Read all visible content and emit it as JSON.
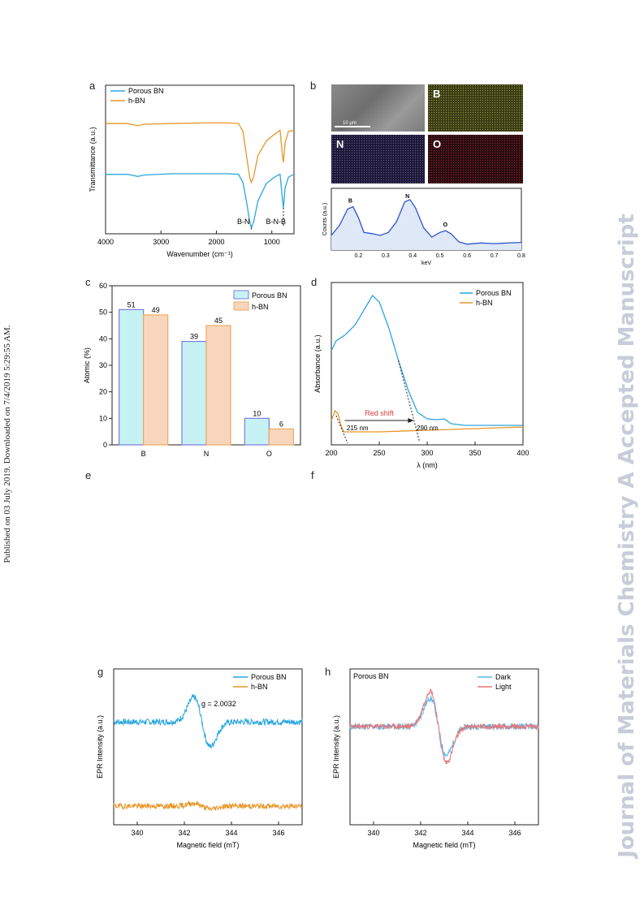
{
  "page": {
    "sidebar_text": "Published on 03 July 2019. Downloaded on 7/4/2019 5:29:55 AM.",
    "watermark_text": "Journal of Materials Chemistry A Accepted Manuscript",
    "panel_letters": [
      "a",
      "b",
      "c",
      "d",
      "e",
      "f",
      "g",
      "h"
    ]
  },
  "colors": {
    "porous": "#2aa6de",
    "hbn": "#e99527",
    "dark": "#5bb8ea",
    "light": "#e87575"
  },
  "chart_data": [
    {
      "id": "a",
      "type": "line",
      "title": "",
      "xlabel": "Wavenumber (cm⁻¹)",
      "ylabel": "Transmittance (a.u.)",
      "xlim": [
        4000,
        600
      ],
      "xticks": [
        "4000",
        "3000",
        "2000",
        "1000"
      ],
      "series": [
        {
          "name": "Porous BN",
          "points": [
            [
              4000,
              0.4
            ],
            [
              3600,
              0.4
            ],
            [
              3420,
              0.385
            ],
            [
              3300,
              0.395
            ],
            [
              2800,
              0.405
            ],
            [
              2200,
              0.405
            ],
            [
              1800,
              0.405
            ],
            [
              1600,
              0.4
            ],
            [
              1520,
              0.34
            ],
            [
              1450,
              0.18
            ],
            [
              1400,
              0.05
            ],
            [
              1370,
              0.0
            ],
            [
              1330,
              0.04
            ],
            [
              1250,
              0.2
            ],
            [
              1100,
              0.33
            ],
            [
              950,
              0.38
            ],
            [
              850,
              0.4
            ],
            [
              810,
              0.22
            ],
            [
              790,
              0.15
            ],
            [
              760,
              0.3
            ],
            [
              700,
              0.38
            ],
            [
              600,
              0.4
            ]
          ]
        },
        {
          "name": "h-BN",
          "points": [
            [
              4000,
              0.78
            ],
            [
              3600,
              0.78
            ],
            [
              3420,
              0.765
            ],
            [
              3300,
              0.775
            ],
            [
              2800,
              0.78
            ],
            [
              2200,
              0.785
            ],
            [
              1800,
              0.785
            ],
            [
              1600,
              0.78
            ],
            [
              1520,
              0.72
            ],
            [
              1450,
              0.52
            ],
            [
              1400,
              0.38
            ],
            [
              1370,
              0.34
            ],
            [
              1330,
              0.38
            ],
            [
              1250,
              0.54
            ],
            [
              1100,
              0.65
            ],
            [
              950,
              0.7
            ],
            [
              850,
              0.73
            ],
            [
              810,
              0.55
            ],
            [
              790,
              0.49
            ],
            [
              760,
              0.64
            ],
            [
              700,
              0.72
            ],
            [
              600,
              0.73
            ]
          ]
        }
      ],
      "annotations": [
        "B-N",
        "B-N-B"
      ]
    },
    {
      "id": "b",
      "type": "line",
      "title": "",
      "xlabel": "keV",
      "ylabel": "Counts (a.u.)",
      "xlim": [
        0.1,
        0.8
      ],
      "xticks": [
        "0.2",
        "0.3",
        "0.4",
        "0.5",
        "0.6",
        "0.7",
        "0.8"
      ],
      "map_labels": [
        "B",
        "N",
        "O"
      ],
      "scale_bar": "10 μm",
      "series": [
        {
          "name": "",
          "points": [
            [
              0.1,
              0.25
            ],
            [
              0.13,
              0.42
            ],
            [
              0.16,
              0.7
            ],
            [
              0.18,
              0.74
            ],
            [
              0.2,
              0.55
            ],
            [
              0.22,
              0.3
            ],
            [
              0.25,
              0.28
            ],
            [
              0.28,
              0.25
            ],
            [
              0.31,
              0.3
            ],
            [
              0.34,
              0.48
            ],
            [
              0.37,
              0.82
            ],
            [
              0.39,
              0.86
            ],
            [
              0.41,
              0.72
            ],
            [
              0.44,
              0.38
            ],
            [
              0.47,
              0.22
            ],
            [
              0.5,
              0.3
            ],
            [
              0.52,
              0.33
            ],
            [
              0.54,
              0.28
            ],
            [
              0.57,
              0.14
            ],
            [
              0.6,
              0.1
            ],
            [
              0.65,
              0.12
            ],
            [
              0.7,
              0.11
            ],
            [
              0.75,
              0.12
            ],
            [
              0.8,
              0.13
            ]
          ]
        }
      ],
      "peak_labels": [
        {
          "text": "B",
          "x": 0.17
        },
        {
          "text": "N",
          "x": 0.38
        },
        {
          "text": "O",
          "x": 0.52
        }
      ]
    },
    {
      "id": "c",
      "type": "bar",
      "title": "",
      "xlabel": "",
      "ylabel": "Atomic (%)",
      "ylim": [
        0,
        60
      ],
      "yticks": [
        "0",
        "10",
        "20",
        "30",
        "40",
        "50",
        "60"
      ],
      "categories": [
        "B",
        "N",
        "O"
      ],
      "series": [
        {
          "name": "Porous BN",
          "values": [
            51,
            39,
            10
          ]
        },
        {
          "name": "h-BN",
          "values": [
            49,
            45,
            6
          ]
        }
      ]
    },
    {
      "id": "d",
      "type": "line",
      "title": "",
      "xlabel": "λ (nm)",
      "ylabel": "Absorbance (a.u.)",
      "xlim": [
        200,
        400
      ],
      "xticks": [
        "200",
        "250",
        "300",
        "350",
        "400"
      ],
      "series": [
        {
          "name": "Porous BN",
          "points": [
            [
              200,
              0.58
            ],
            [
              205,
              0.64
            ],
            [
              215,
              0.68
            ],
            [
              225,
              0.74
            ],
            [
              235,
              0.84
            ],
            [
              243,
              0.92
            ],
            [
              250,
              0.88
            ],
            [
              260,
              0.72
            ],
            [
              270,
              0.52
            ],
            [
              280,
              0.34
            ],
            [
              290,
              0.2
            ],
            [
              300,
              0.16
            ],
            [
              310,
              0.155
            ],
            [
              318,
              0.16
            ],
            [
              325,
              0.13
            ],
            [
              340,
              0.12
            ],
            [
              360,
              0.12
            ],
            [
              400,
              0.12
            ]
          ]
        },
        {
          "name": "h-BN",
          "points": [
            [
              200,
              0.15
            ],
            [
              204,
              0.21
            ],
            [
              207,
              0.19
            ],
            [
              210,
              0.12
            ],
            [
              213,
              0.08
            ],
            [
              220,
              0.08
            ],
            [
              250,
              0.08
            ],
            [
              300,
              0.09
            ],
            [
              350,
              0.1
            ],
            [
              400,
              0.11
            ]
          ]
        }
      ],
      "annotations": [
        "Red shift",
        "215 nm",
        "290 nm"
      ]
    },
    {
      "id": "g",
      "type": "line",
      "title": "",
      "xlabel": "Magnetic field (mT)",
      "ylabel": "EPR Intensity (a.u.)",
      "xlim": [
        339,
        347
      ],
      "xticks": [
        "340",
        "342",
        "344",
        "346"
      ],
      "series": [
        {
          "name": "Porous BN"
        },
        {
          "name": "h-BN"
        }
      ],
      "annotations": [
        "g = 2.0032"
      ]
    },
    {
      "id": "h",
      "type": "line",
      "title": "Porous BN",
      "xlabel": "Magnetic field (mT)",
      "ylabel": "EPR Intensity (a.u.)",
      "xlim": [
        339,
        347
      ],
      "xticks": [
        "340",
        "342",
        "344",
        "346"
      ],
      "series": [
        {
          "name": "Dark"
        },
        {
          "name": "Light"
        }
      ]
    }
  ]
}
